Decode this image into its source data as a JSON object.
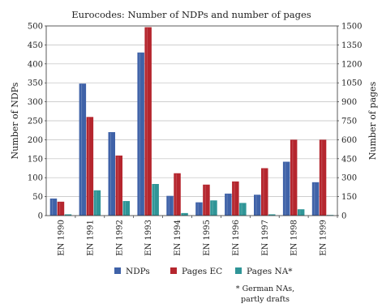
{
  "chart_data": {
    "type": "bar",
    "title": "Eurocodes: Number of NDPs and number of pages",
    "categories": [
      "EN 1990",
      "EN 1991",
      "EN 1992",
      "EN 1993",
      "EN 1994",
      "EN 1995",
      "EN 1996",
      "EN 1997",
      "EN 1998",
      "EN 1999"
    ],
    "series": [
      {
        "name": "NDPs",
        "axis": "left",
        "color": "#3f62a8",
        "values": [
          45,
          348,
          220,
          430,
          52,
          35,
          58,
          55,
          142,
          88
        ]
      },
      {
        "name": "Pages EC",
        "axis": "right",
        "color": "#b5262e",
        "values": [
          110,
          780,
          475,
          1490,
          335,
          245,
          270,
          375,
          600,
          600
        ]
      },
      {
        "name": "Pages NA*",
        "axis": "right",
        "color": "#2f9597",
        "values": [
          10,
          200,
          115,
          250,
          20,
          120,
          100,
          10,
          50,
          5
        ]
      }
    ],
    "ylabel_left": "Number of NDPs",
    "ylabel_right": "Number of pages",
    "ylim_left": [
      0,
      500
    ],
    "ylim_right": [
      0,
      1500
    ],
    "yticks_left": [
      0,
      50,
      100,
      150,
      200,
      250,
      300,
      350,
      400,
      450,
      500
    ],
    "yticks_right": [
      0,
      150,
      300,
      450,
      600,
      750,
      900,
      1050,
      1200,
      1350,
      1500
    ],
    "legend_position": "bottom",
    "footnote_lines": [
      "* German NAs,",
      "partly drafts"
    ]
  }
}
